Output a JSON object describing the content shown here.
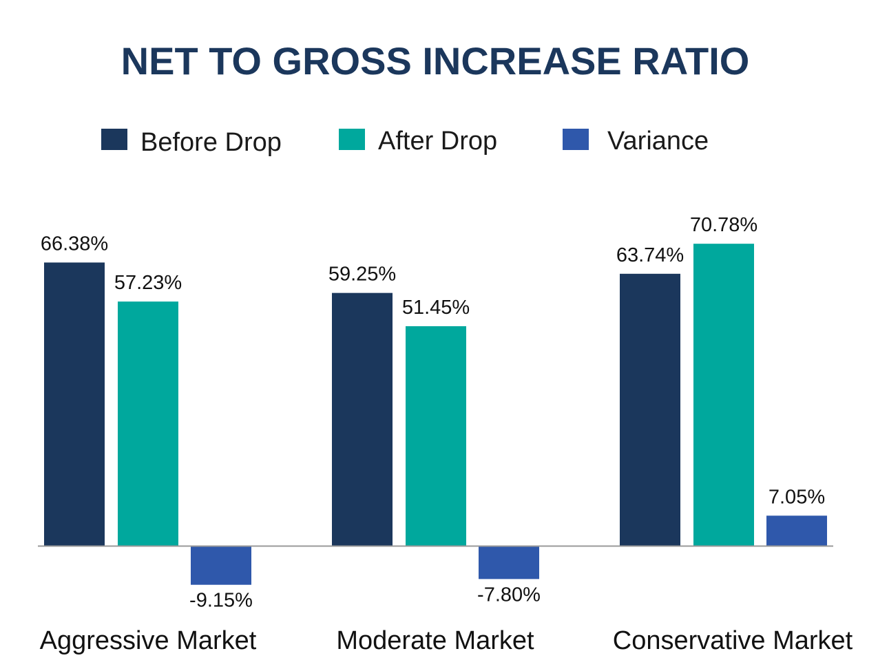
{
  "chart_data": {
    "type": "bar",
    "title": "NET TO GROSS INCREASE RATIO",
    "categories": [
      "Aggressive Market",
      "Moderate Market",
      "Conservative Market"
    ],
    "series": [
      {
        "name": "Before Drop",
        "color": "#1b375c",
        "values": [
          66.38,
          59.25,
          63.74
        ],
        "labels": [
          "66.38%",
          "59.25%",
          "63.74%"
        ]
      },
      {
        "name": "After Drop",
        "color": "#00a89d",
        "values": [
          57.23,
          51.45,
          70.78
        ],
        "labels": [
          "57.23%",
          "51.45%",
          "70.78%"
        ]
      },
      {
        "name": "Variance",
        "color": "#2f58ab",
        "values": [
          -9.15,
          -7.8,
          7.05
        ],
        "labels": [
          "-9.15%",
          "-7.80%",
          "7.05%"
        ]
      }
    ],
    "legend_position": "top",
    "grid": false,
    "ylim": [
      -10,
      75
    ]
  }
}
